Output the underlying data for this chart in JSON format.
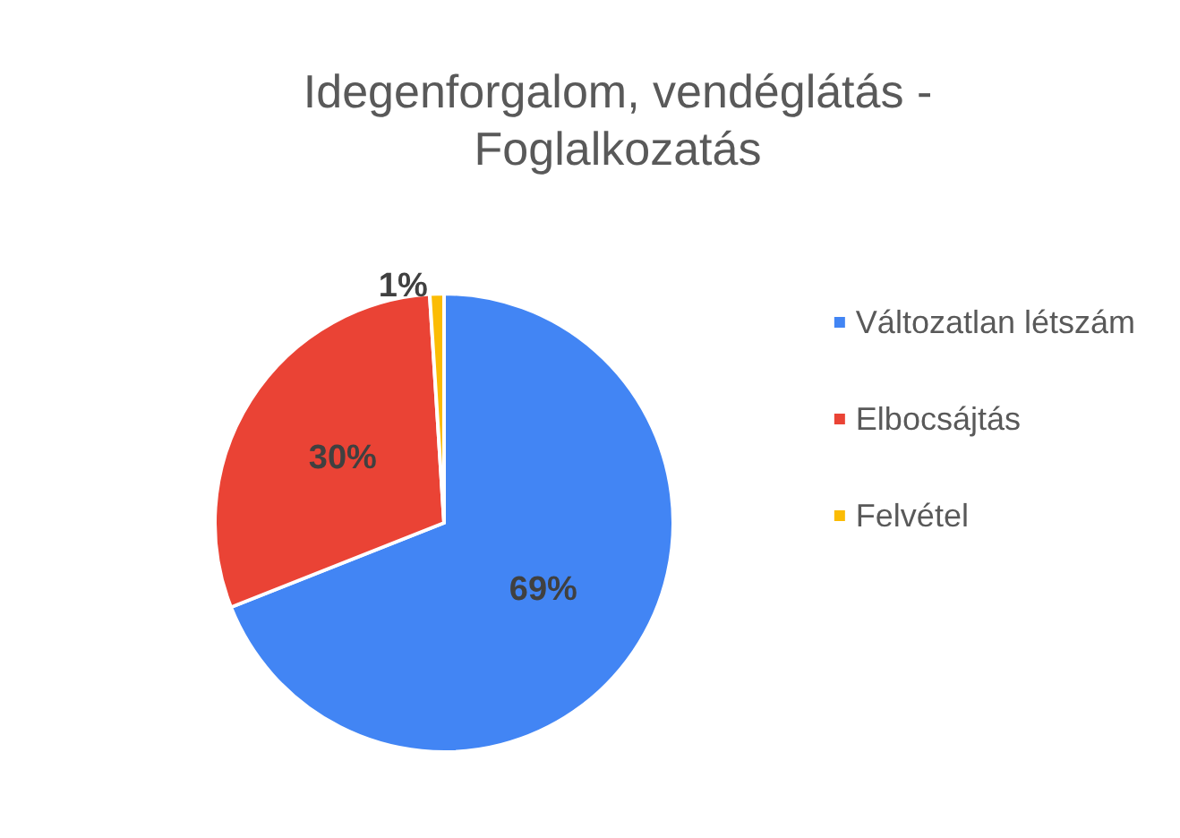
{
  "chart_data": {
    "type": "pie",
    "title": "Idegenforgalom, vendéglátás -\nFoglalkozatás",
    "categories": [
      "Változatlan létszám",
      "Elbocsájtás",
      "Felvétel"
    ],
    "values": [
      69,
      30,
      1
    ],
    "colors": [
      "#4285f4",
      "#ea4335",
      "#fbbc04"
    ],
    "value_labels": [
      "69%",
      "30%",
      "1%"
    ],
    "legend": "right"
  }
}
